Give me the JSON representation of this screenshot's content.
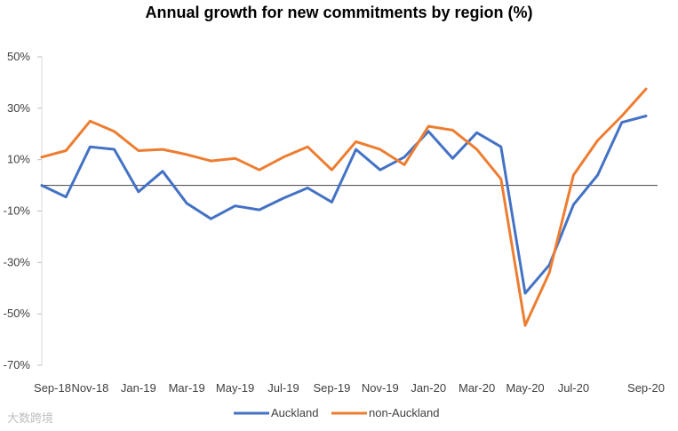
{
  "chart_data": {
    "type": "line",
    "title": "Annual growth for new commitments by region (%)",
    "xlabel": "",
    "ylabel": "",
    "ylim": [
      -70,
      50
    ],
    "yticks": [
      50,
      30,
      10,
      -10,
      -30,
      -50,
      -70
    ],
    "ytick_labels": [
      "50%",
      "30%",
      "10%",
      "-10%",
      "-30%",
      "-50%",
      "-70%"
    ],
    "x_labels": [
      "Sep-18",
      "Nov-18",
      "Jan-19",
      "Mar-19",
      "May-19",
      "Jul-19",
      "Sep-19",
      "Nov-19",
      "Jan-20",
      "Mar-20",
      "May-20",
      "Jul-20",
      "Sep-20"
    ],
    "series": [
      {
        "name": "Auckland",
        "color": "#4472C4",
        "values": [
          0,
          -4.5,
          15,
          14,
          -2.5,
          5.5,
          -7,
          -13,
          -8,
          -9.5,
          -5,
          -1,
          -6.5,
          14,
          6,
          11,
          21,
          10.5,
          20.5,
          15,
          -42,
          -31,
          -7.5,
          4,
          24.5,
          27
        ]
      },
      {
        "name": "non-Auckland",
        "color": "#ED7D31",
        "values": [
          11,
          13.5,
          25,
          21,
          13.5,
          14,
          12,
          9.5,
          10.5,
          6,
          11,
          15,
          6,
          17,
          14,
          8,
          23,
          21.5,
          14,
          2.5,
          -54.5,
          -34,
          4,
          17.5,
          27,
          37.5
        ]
      }
    ],
    "legend_position": "bottom",
    "zero_line": true,
    "grid": false
  },
  "watermark": "大数跨境"
}
